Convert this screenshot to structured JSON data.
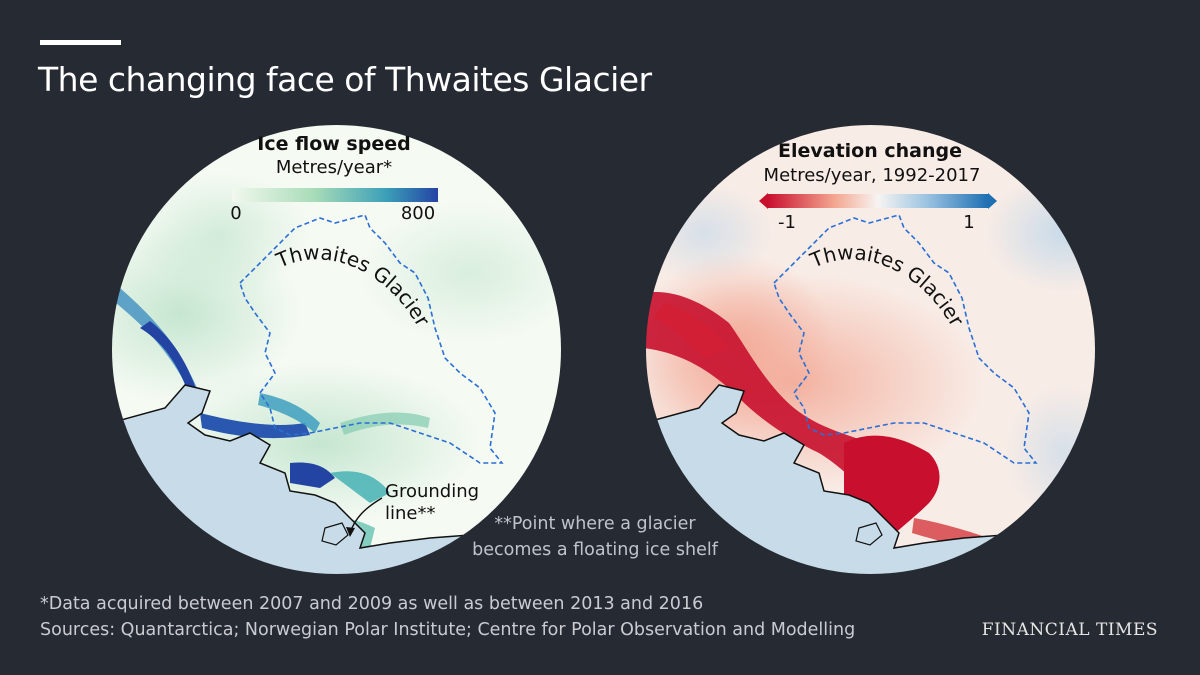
{
  "title": "The changing face of Thwaites Glacier",
  "left_map": {
    "legend_title": "Ice flow speed",
    "legend_subtitle": "Metres/year*",
    "scale_min": "0",
    "scale_max": "800",
    "scale_colors": [
      "#f2f8ee",
      "#a8dcb8",
      "#3b9fb8",
      "#2444a4"
    ],
    "glacier_label": "Thwaites Glacier",
    "grounding_label_line1": "Grounding",
    "grounding_label_line2": "line**"
  },
  "right_map": {
    "legend_title": "Elevation change",
    "legend_subtitle": "Metres/year, 1992-2017",
    "scale_min": "-1",
    "scale_max": "1",
    "scale_colors": [
      "#c8102e",
      "#f3a58f",
      "#f7f4f2",
      "#9cc4e2",
      "#1f6fb3"
    ],
    "glacier_label": "Thwaites Glacier"
  },
  "grounding_note_line1": "**Point where a glacier",
  "grounding_note_line2": "becomes a floating ice shelf",
  "footnote": "*Data acquired between 2007 and 2009 as well as between 2013 and 2016",
  "sources": "Sources: Quantarctica; Norwegian Polar Institute; Centre for Polar Observation and Modelling",
  "brand": "FINANCIAL TIMES",
  "colors": {
    "background": "#262a33",
    "ocean": "#c7dce8",
    "boundary": "#2a6fd6"
  }
}
